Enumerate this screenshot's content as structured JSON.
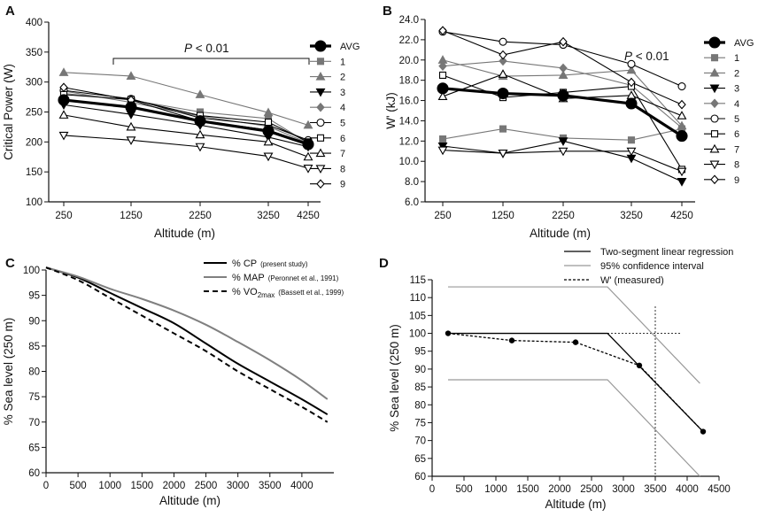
{
  "chart_data": [
    {
      "panel": "A",
      "type": "line",
      "ylabel": "Critical Power (W)",
      "xlabel": "Altitude (m)",
      "categories": [
        "250",
        "1250",
        "2250",
        "3250",
        "4250"
      ],
      "ylim": [
        100,
        400
      ],
      "yticks": [
        "100",
        "150",
        "200",
        "250",
        "300",
        "350",
        "400"
      ],
      "annotation": {
        "prefix": "P",
        "text": " < 0.01"
      },
      "legend_position": "right",
      "series": [
        {
          "name": "AVG",
          "marker": "filled-circle-large",
          "color": "#000000",
          "values": [
            270,
            258,
            235,
            218,
            196
          ]
        },
        {
          "name": "1",
          "marker": "filled-square",
          "color": "#777777",
          "values": [
            281,
            270,
            250,
            239,
            198
          ]
        },
        {
          "name": "2",
          "marker": "filled-triangle-up",
          "color": "#777777",
          "values": [
            316,
            310,
            279,
            249,
            228
          ]
        },
        {
          "name": "3",
          "marker": "filled-triangle-down",
          "color": "#000000",
          "values": [
            262,
            246,
            228,
            208,
            192
          ]
        },
        {
          "name": "4",
          "marker": "filled-diamond",
          "color": "#777777",
          "values": [
            285,
            266,
            243,
            226,
            198
          ]
        },
        {
          "name": "5",
          "marker": "open-circle",
          "color": "#000000",
          "values": [
            286,
            272,
            240,
            228,
            203
          ]
        },
        {
          "name": "6",
          "marker": "open-square",
          "color": "#000000",
          "values": [
            279,
            271,
            244,
            233,
            200
          ]
        },
        {
          "name": "7",
          "marker": "open-triangle-up",
          "color": "#000000",
          "values": [
            245,
            225,
            212,
            200,
            175
          ]
        },
        {
          "name": "8",
          "marker": "open-triangle-down",
          "color": "#000000",
          "values": [
            211,
            203,
            192,
            176,
            156
          ]
        },
        {
          "name": "9",
          "marker": "open-diamond",
          "color": "#000000",
          "values": [
            291,
            270,
            235,
            220,
            197
          ]
        }
      ]
    },
    {
      "panel": "B",
      "type": "line",
      "ylabel": "W' (kJ)",
      "xlabel": "Altitude (m)",
      "categories": [
        "250",
        "1250",
        "2250",
        "3250",
        "4250"
      ],
      "ylim": [
        6,
        24
      ],
      "yticks": [
        "6.0",
        "8.0",
        "10.0",
        "12.0",
        "14.0",
        "16.0",
        "18.0",
        "20.0",
        "22.0",
        "24.0"
      ],
      "annotation": {
        "prefix": "P",
        "text": " < 0.01"
      },
      "legend_position": "right",
      "series": [
        {
          "name": "AVG",
          "marker": "filled-circle-large",
          "color": "#000000",
          "values": [
            17.2,
            16.7,
            16.5,
            15.7,
            12.5
          ]
        },
        {
          "name": "1",
          "marker": "filled-square",
          "color": "#777777",
          "values": [
            12.2,
            13.2,
            12.3,
            12.1,
            13.2
          ]
        },
        {
          "name": "2",
          "marker": "filled-triangle-up",
          "color": "#777777",
          "values": [
            20.0,
            18.4,
            18.5,
            19.0,
            13.5
          ]
        },
        {
          "name": "3",
          "marker": "filled-triangle-down",
          "color": "#000000",
          "values": [
            11.5,
            10.8,
            12.0,
            10.3,
            8.0
          ]
        },
        {
          "name": "4",
          "marker": "filled-diamond",
          "color": "#777777",
          "values": [
            19.4,
            19.9,
            19.2,
            17.5,
            13.3
          ]
        },
        {
          "name": "5",
          "marker": "open-circle",
          "color": "#000000",
          "values": [
            22.8,
            21.8,
            21.5,
            19.6,
            17.4
          ]
        },
        {
          "name": "6",
          "marker": "open-square",
          "color": "#000000",
          "values": [
            18.5,
            16.3,
            16.8,
            17.4,
            9.2
          ]
        },
        {
          "name": "7",
          "marker": "open-triangle-up",
          "color": "#000000",
          "values": [
            16.4,
            18.6,
            16.2,
            16.5,
            14.5
          ]
        },
        {
          "name": "8",
          "marker": "open-triangle-down",
          "color": "#000000",
          "values": [
            11.1,
            10.8,
            11.0,
            11.0,
            9.0
          ]
        },
        {
          "name": "9",
          "marker": "open-diamond",
          "color": "#000000",
          "values": [
            22.9,
            20.5,
            21.8,
            17.8,
            15.6
          ]
        }
      ]
    },
    {
      "panel": "C",
      "type": "line",
      "ylabel": "% Sea level (250 m)",
      "xlabel": "Altitude (m)",
      "xlim": [
        0,
        4500
      ],
      "ylim": [
        60,
        100
      ],
      "xticks": [
        "0",
        "500",
        "1000",
        "1500",
        "2000",
        "2500",
        "3000",
        "3500",
        "4000"
      ],
      "yticks": [
        "60",
        "65",
        "70",
        "75",
        "80",
        "85",
        "90",
        "95",
        "100"
      ],
      "legend_position": "top-right",
      "series": [
        {
          "name": "% CP",
          "source": "(present study)",
          "style": "solid",
          "color": "#000000",
          "x": [
            0,
            500,
            1000,
            1500,
            2000,
            2500,
            3000,
            3500,
            4000,
            4400
          ],
          "y": [
            100.5,
            98.5,
            95.5,
            92.5,
            89.5,
            85.5,
            81.5,
            78.0,
            74.5,
            71.5
          ]
        },
        {
          "name": "% MAP",
          "source": "(Peronnet et al., 1991)",
          "style": "solid",
          "color": "#808080",
          "x": [
            0,
            500,
            1000,
            1500,
            2000,
            2500,
            3000,
            3500,
            4000,
            4400
          ],
          "y": [
            100.5,
            98.7,
            96.3,
            94.3,
            92.0,
            89.2,
            85.8,
            82.2,
            78.2,
            74.5
          ]
        },
        {
          "name": "% VO",
          "name_sub": "2max",
          "source": "(Bassett et al., 1999)",
          "style": "dashed",
          "color": "#000000",
          "x": [
            0,
            500,
            1000,
            1500,
            2000,
            2500,
            3000,
            3500,
            4000,
            4400
          ],
          "y": [
            100.5,
            98.0,
            94.5,
            91.0,
            87.5,
            84.0,
            80.0,
            76.5,
            73.0,
            70.0
          ]
        }
      ]
    },
    {
      "panel": "D",
      "type": "line",
      "ylabel": "%  Sea level (250 m)",
      "xlabel": "Altitude (m)",
      "xlim": [
        0,
        4500
      ],
      "ylim": [
        60,
        115
      ],
      "xticks": [
        "0",
        "500",
        "1000",
        "1500",
        "2000",
        "2500",
        "3000",
        "3500",
        "4000",
        "4500"
      ],
      "yticks": [
        "60",
        "65",
        "70",
        "75",
        "80",
        "85",
        "90",
        "95",
        "100",
        "105",
        "110",
        "115"
      ],
      "legend_position": "top-right",
      "series": [
        {
          "name": "Two-segment linear regression",
          "style": "solid",
          "color": "#000000",
          "x": [
            250,
            2750,
            4250
          ],
          "y": [
            100,
            100,
            72.5
          ]
        },
        {
          "name": "95% confidence interval",
          "style": "solid",
          "color": "#999999",
          "upper": {
            "x": [
              250,
              2750,
              4200
            ],
            "y": [
              113,
              113,
              86
            ]
          },
          "lower": {
            "x": [
              250,
              2750,
              4200
            ],
            "y": [
              87,
              87,
              60
            ]
          }
        },
        {
          "name": "W' (measured)",
          "style": "dotted",
          "color": "#000000",
          "marker": "filled-circle",
          "x": [
            250,
            1250,
            2250,
            3250,
            4250
          ],
          "y": [
            100,
            98,
            97.5,
            91,
            72.5
          ]
        }
      ],
      "reference_lines": {
        "vertical_x": 3500,
        "horizontal_y": 100
      }
    }
  ]
}
